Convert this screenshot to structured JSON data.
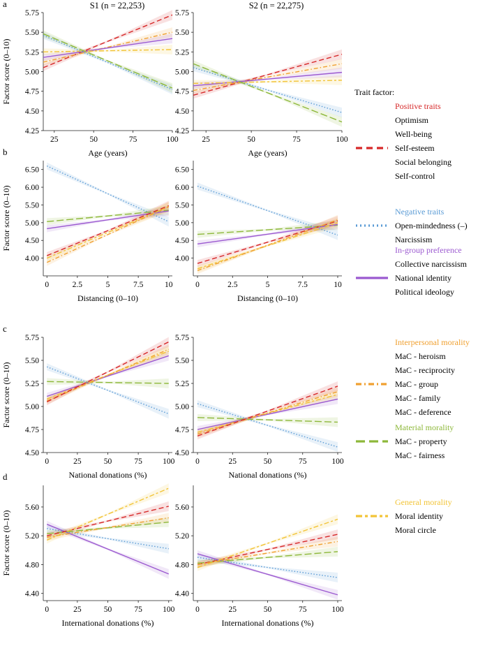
{
  "colors": {
    "positive": "#d62728",
    "negative": "#5a9bd5",
    "ingroup": "#9b59d0",
    "interpersonal": "#f0a030",
    "material": "#8db83a",
    "general": "#f2c437"
  },
  "columns": [
    {
      "title": "S1 (n = 22,253)"
    },
    {
      "title": "S2 (n = 22,275)"
    }
  ],
  "legend": {
    "title": "Trait factor:",
    "groups": [
      {
        "key": "positive",
        "label": "Positive traits",
        "dash": "dashed",
        "items": [
          "Optimism",
          "Well-being",
          "Self-esteem",
          "Social belonging",
          "Self-control"
        ],
        "swatch_at": 2
      },
      {
        "key": "negative",
        "label": "Negative traits",
        "dash": "dotted",
        "items": [
          "Open-mindedness (–)",
          "Narcissism"
        ],
        "swatch_at": 0
      },
      {
        "key": "ingroup",
        "label": "In-group preference",
        "dash": "solid",
        "items": [
          "Collective narcissism",
          "National identity",
          "Political ideology"
        ],
        "swatch_at": 1
      },
      {
        "key": "interpersonal",
        "label": "Interpersonal morality",
        "dash": "dashdot",
        "items": [
          "MaC - heroism",
          "MaC - reciprocity",
          "MaC - group",
          "MaC - family",
          "MaC - deference"
        ],
        "swatch_at": 2
      },
      {
        "key": "material",
        "label": "Material morality",
        "dash": "longdash",
        "items": [
          "MaC - property",
          "MaC - fairness"
        ],
        "swatch_at": 0
      },
      {
        "key": "general",
        "label": "General morality",
        "dash": "twodash",
        "items": [
          "Moral identity",
          "Moral circle"
        ],
        "swatch_at": 0
      }
    ]
  },
  "chart_data": [
    {
      "type": "line",
      "panel": "a",
      "study": "S1 (n = 22,253)",
      "xlabel": "Age (years)",
      "ylabel": "Factor score (0–10)",
      "xlim": [
        18,
        100
      ],
      "ylim": [
        4.25,
        5.75
      ],
      "xticks": [
        25,
        50,
        75,
        100
      ],
      "xticklabels": [
        "25",
        "50",
        "75",
        "100"
      ],
      "yticks": [
        4.25,
        4.5,
        4.75,
        5.0,
        5.25,
        5.5,
        5.75
      ],
      "yticklabels": [
        "4.25",
        "4.50",
        "4.75",
        "5.00",
        "5.25",
        "5.50",
        "5.75"
      ],
      "series": [
        {
          "name": "Positive traits",
          "group": "positive",
          "x": [
            18,
            100
          ],
          "y": [
            5.05,
            5.72
          ]
        },
        {
          "name": "Interpersonal morality",
          "group": "interpersonal",
          "x": [
            18,
            100
          ],
          "y": [
            5.12,
            5.5
          ]
        },
        {
          "name": "In-group preference",
          "group": "ingroup",
          "x": [
            18,
            100
          ],
          "y": [
            5.18,
            5.42
          ]
        },
        {
          "name": "General morality",
          "group": "general",
          "x": [
            18,
            100
          ],
          "y": [
            5.25,
            5.28
          ]
        },
        {
          "name": "Negative traits",
          "group": "negative",
          "x": [
            18,
            100
          ],
          "y": [
            5.46,
            4.77
          ]
        },
        {
          "name": "Material morality",
          "group": "material",
          "x": [
            18,
            100
          ],
          "y": [
            5.48,
            4.79
          ]
        }
      ]
    },
    {
      "type": "line",
      "panel": "",
      "study": "S2 (n = 22,275)",
      "xlabel": "Age (years)",
      "ylabel": "",
      "xlim": [
        18,
        100
      ],
      "ylim": [
        4.25,
        5.75
      ],
      "xticks": [
        25,
        50,
        75,
        100
      ],
      "xticklabels": [
        "25",
        "50",
        "75",
        "100"
      ],
      "yticks": [
        4.25,
        4.5,
        4.75,
        5.0,
        5.25,
        5.5,
        5.75
      ],
      "yticklabels": [
        "4.25",
        "4.50",
        "4.75",
        "5.00",
        "5.25",
        "5.50",
        "5.75"
      ],
      "series": [
        {
          "name": "Positive traits",
          "group": "positive",
          "x": [
            18,
            100
          ],
          "y": [
            4.7,
            5.22
          ]
        },
        {
          "name": "Interpersonal morality",
          "group": "interpersonal",
          "x": [
            18,
            100
          ],
          "y": [
            4.76,
            5.1
          ]
        },
        {
          "name": "In-group preference",
          "group": "ingroup",
          "x": [
            18,
            100
          ],
          "y": [
            4.82,
            4.99
          ]
        },
        {
          "name": "General morality",
          "group": "general",
          "x": [
            18,
            100
          ],
          "y": [
            4.85,
            4.89
          ]
        },
        {
          "name": "Negative traits",
          "group": "negative",
          "x": [
            18,
            100
          ],
          "y": [
            5.05,
            4.48
          ]
        },
        {
          "name": "Material morality",
          "group": "material",
          "x": [
            18,
            100
          ],
          "y": [
            5.1,
            4.36
          ]
        }
      ]
    },
    {
      "type": "line",
      "panel": "b",
      "study": "S1 (n = 22,253)",
      "xlabel": "Distancing (0–10)",
      "ylabel": "Factor score (0–10)",
      "xlim": [
        -0.3,
        10.3
      ],
      "ylim": [
        3.5,
        6.75
      ],
      "xticks": [
        0,
        2.5,
        5,
        7.5,
        10
      ],
      "xticklabels": [
        "0",
        "2.5",
        "5",
        "7.5",
        "10"
      ],
      "yticks": [
        4.0,
        4.5,
        5.0,
        5.5,
        6.0,
        6.5
      ],
      "yticklabels": [
        "4.00",
        "4.50",
        "5.00",
        "5.50",
        "6.00",
        "6.50"
      ],
      "series": [
        {
          "name": "Negative traits",
          "group": "negative",
          "x": [
            0,
            10
          ],
          "y": [
            6.6,
            5.03
          ]
        },
        {
          "name": "Material morality",
          "group": "material",
          "x": [
            0,
            10
          ],
          "y": [
            5.03,
            5.35
          ]
        },
        {
          "name": "In-group preference",
          "group": "ingroup",
          "x": [
            0,
            10
          ],
          "y": [
            4.83,
            5.33
          ]
        },
        {
          "name": "Positive traits",
          "group": "positive",
          "x": [
            0,
            10
          ],
          "y": [
            4.07,
            5.48
          ]
        },
        {
          "name": "General morality",
          "group": "general",
          "x": [
            0,
            10
          ],
          "y": [
            4.0,
            5.45
          ]
        },
        {
          "name": "Interpersonal morality",
          "group": "interpersonal",
          "x": [
            0,
            10
          ],
          "y": [
            3.88,
            5.45
          ]
        }
      ]
    },
    {
      "type": "line",
      "panel": "",
      "study": "S2 (n = 22,275)",
      "xlabel": "Distancing (0–10)",
      "ylabel": "",
      "xlim": [
        -0.3,
        10.3
      ],
      "ylim": [
        3.5,
        6.75
      ],
      "xticks": [
        0,
        2.5,
        5,
        7.5,
        10
      ],
      "xticklabels": [
        "0",
        "2.5",
        "5",
        "7.5",
        "10"
      ],
      "yticks": [
        4.0,
        4.5,
        5.0,
        5.5,
        6.0,
        6.5
      ],
      "yticklabels": [
        "4.00",
        "4.50",
        "5.00",
        "5.50",
        "6.00",
        "6.50"
      ],
      "series": [
        {
          "name": "Negative traits",
          "group": "negative",
          "x": [
            0,
            10
          ],
          "y": [
            6.03,
            4.65
          ]
        },
        {
          "name": "Material morality",
          "group": "material",
          "x": [
            0,
            10
          ],
          "y": [
            4.67,
            4.93
          ]
        },
        {
          "name": "In-group preference",
          "group": "ingroup",
          "x": [
            0,
            10
          ],
          "y": [
            4.4,
            4.95
          ]
        },
        {
          "name": "Positive traits",
          "group": "positive",
          "x": [
            0,
            10
          ],
          "y": [
            3.85,
            5.05
          ]
        },
        {
          "name": "General morality",
          "group": "general",
          "x": [
            0,
            10
          ],
          "y": [
            3.7,
            5.0
          ]
        },
        {
          "name": "Interpersonal morality",
          "group": "interpersonal",
          "x": [
            0,
            10
          ],
          "y": [
            3.65,
            5.08
          ]
        }
      ]
    },
    {
      "type": "line",
      "panel": "c",
      "study": "S1 (n = 22,253)",
      "xlabel": "National donations (%)",
      "ylabel": "Factor score (0–10)",
      "xlim": [
        -3,
        103
      ],
      "ylim": [
        4.5,
        5.75
      ],
      "xticks": [
        0,
        25,
        50,
        75,
        100
      ],
      "xticklabels": [
        "0",
        "25",
        "50",
        "75",
        "100"
      ],
      "yticks": [
        4.5,
        4.75,
        5.0,
        5.25,
        5.5,
        5.75
      ],
      "yticklabels": [
        "4.50",
        "4.75",
        "5.00",
        "5.25",
        "5.50",
        "5.75"
      ],
      "series": [
        {
          "name": "Negative traits",
          "group": "negative",
          "x": [
            0,
            100
          ],
          "y": [
            5.43,
            4.92
          ]
        },
        {
          "name": "Material morality",
          "group": "material",
          "x": [
            0,
            100
          ],
          "y": [
            5.27,
            5.25
          ]
        },
        {
          "name": "In-group preference",
          "group": "ingroup",
          "x": [
            0,
            100
          ],
          "y": [
            5.11,
            5.55
          ]
        },
        {
          "name": "General morality",
          "group": "general",
          "x": [
            0,
            100
          ],
          "y": [
            5.08,
            5.6
          ]
        },
        {
          "name": "Interpersonal morality",
          "group": "interpersonal",
          "x": [
            0,
            100
          ],
          "y": [
            5.06,
            5.62
          ]
        },
        {
          "name": "Positive traits",
          "group": "positive",
          "x": [
            0,
            100
          ],
          "y": [
            5.05,
            5.7
          ]
        }
      ]
    },
    {
      "type": "line",
      "panel": "",
      "study": "S2 (n = 22,275)",
      "xlabel": "National donations (%)",
      "ylabel": "",
      "xlim": [
        -3,
        103
      ],
      "ylim": [
        4.5,
        5.75
      ],
      "xticks": [
        0,
        25,
        50,
        75,
        100
      ],
      "xticklabels": [
        "0",
        "25",
        "50",
        "75",
        "100"
      ],
      "yticks": [
        4.5,
        4.75,
        5.0,
        5.25,
        5.5,
        5.75
      ],
      "yticklabels": [
        "4.50",
        "4.75",
        "5.00",
        "5.25",
        "5.50",
        "5.75"
      ],
      "series": [
        {
          "name": "Negative traits",
          "group": "negative",
          "x": [
            0,
            100
          ],
          "y": [
            5.03,
            4.56
          ]
        },
        {
          "name": "Material morality",
          "group": "material",
          "x": [
            0,
            100
          ],
          "y": [
            4.88,
            4.83
          ]
        },
        {
          "name": "In-group preference",
          "group": "ingroup",
          "x": [
            0,
            100
          ],
          "y": [
            4.75,
            5.08
          ]
        },
        {
          "name": "General morality",
          "group": "general",
          "x": [
            0,
            100
          ],
          "y": [
            4.72,
            5.13
          ]
        },
        {
          "name": "Interpersonal morality",
          "group": "interpersonal",
          "x": [
            0,
            100
          ],
          "y": [
            4.7,
            5.16
          ]
        },
        {
          "name": "Positive traits",
          "group": "positive",
          "x": [
            0,
            100
          ],
          "y": [
            4.68,
            5.22
          ]
        }
      ]
    },
    {
      "type": "line",
      "panel": "d",
      "study": "S1 (n = 22,253)",
      "xlabel": "International donations (%)",
      "ylabel": "Factor score (0–10)",
      "xlim": [
        -3,
        103
      ],
      "ylim": [
        4.3,
        5.9
      ],
      "xticks": [
        0,
        25,
        50,
        75,
        100
      ],
      "xticklabels": [
        "0",
        "25",
        "50",
        "75",
        "100"
      ],
      "yticks": [
        4.4,
        4.8,
        5.2,
        5.6
      ],
      "yticklabels": [
        "4.40",
        "4.80",
        "5.20",
        "5.60"
      ],
      "series": [
        {
          "name": "In-group preference",
          "group": "ingroup",
          "x": [
            0,
            100
          ],
          "y": [
            5.36,
            4.67
          ]
        },
        {
          "name": "Negative traits",
          "group": "negative",
          "x": [
            0,
            100
          ],
          "y": [
            5.3,
            5.02
          ]
        },
        {
          "name": "Material morality",
          "group": "material",
          "x": [
            0,
            100
          ],
          "y": [
            5.23,
            5.39
          ]
        },
        {
          "name": "Positive traits",
          "group": "positive",
          "x": [
            0,
            100
          ],
          "y": [
            5.2,
            5.61
          ]
        },
        {
          "name": "Interpersonal morality",
          "group": "interpersonal",
          "x": [
            0,
            100
          ],
          "y": [
            5.18,
            5.45
          ]
        },
        {
          "name": "General morality",
          "group": "general",
          "x": [
            0,
            100
          ],
          "y": [
            5.14,
            5.86
          ]
        }
      ]
    },
    {
      "type": "line",
      "panel": "",
      "study": "S2 (n = 22,275)",
      "xlabel": "International donations (%)",
      "ylabel": "",
      "xlim": [
        -3,
        103
      ],
      "ylim": [
        4.3,
        5.9
      ],
      "xticks": [
        0,
        25,
        50,
        75,
        100
      ],
      "xticklabels": [
        "0",
        "25",
        "50",
        "75",
        "100"
      ],
      "yticks": [
        4.4,
        4.8,
        5.2,
        5.6
      ],
      "yticklabels": [
        "4.40",
        "4.80",
        "5.20",
        "5.60"
      ],
      "series": [
        {
          "name": "In-group preference",
          "group": "ingroup",
          "x": [
            0,
            100
          ],
          "y": [
            4.95,
            4.38
          ]
        },
        {
          "name": "Negative traits",
          "group": "negative",
          "x": [
            0,
            100
          ],
          "y": [
            4.9,
            4.62
          ]
        },
        {
          "name": "Material morality",
          "group": "material",
          "x": [
            0,
            100
          ],
          "y": [
            4.82,
            4.98
          ]
        },
        {
          "name": "Positive traits",
          "group": "positive",
          "x": [
            0,
            100
          ],
          "y": [
            4.8,
            5.22
          ]
        },
        {
          "name": "Interpersonal morality",
          "group": "interpersonal",
          "x": [
            0,
            100
          ],
          "y": [
            4.8,
            5.12
          ]
        },
        {
          "name": "General morality",
          "group": "general",
          "x": [
            0,
            100
          ],
          "y": [
            4.76,
            5.43
          ]
        }
      ]
    }
  ]
}
